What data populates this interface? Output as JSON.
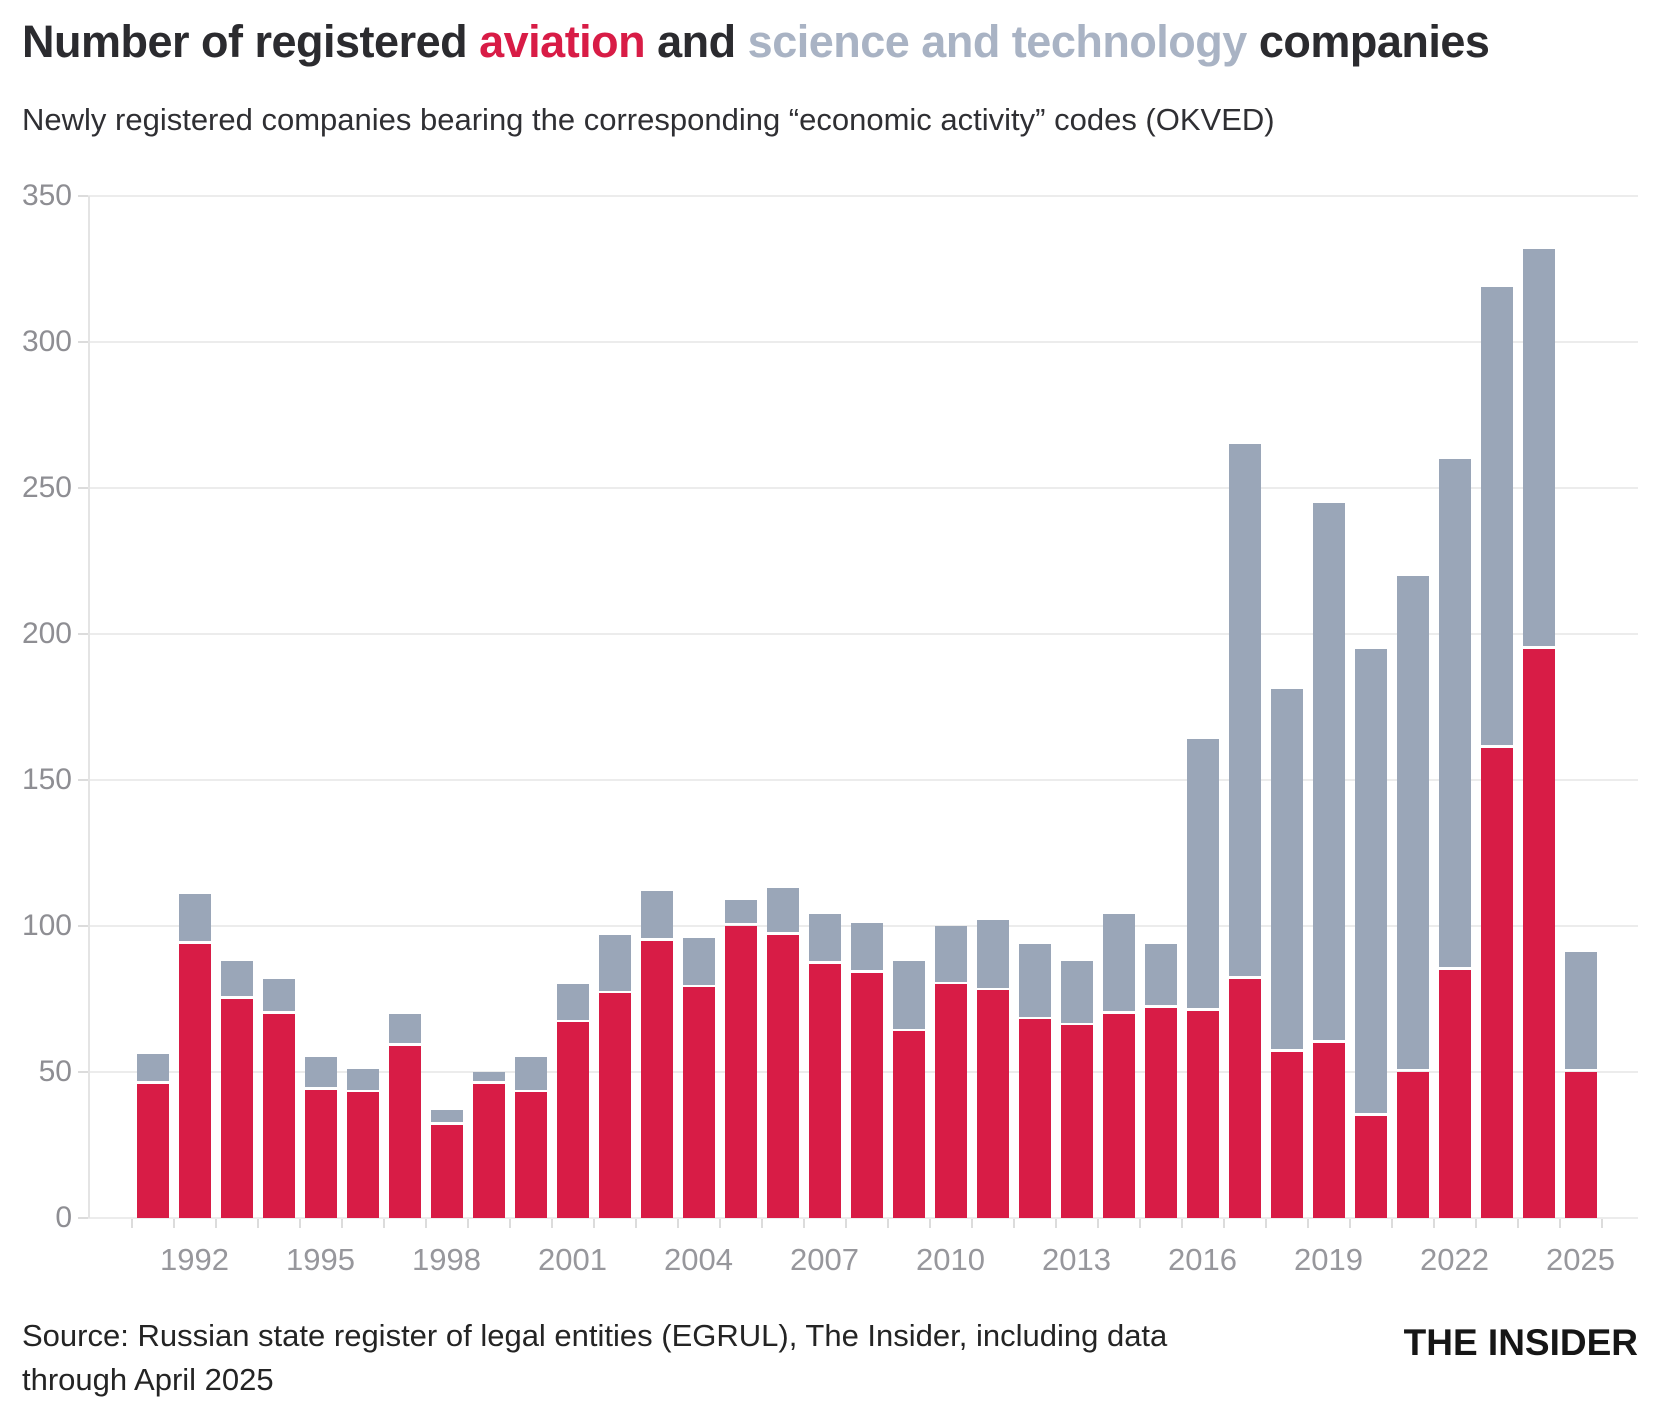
{
  "title": {
    "part1": "Number of registered ",
    "part2": "aviation",
    "part3": " and ",
    "part4": "science and technology",
    "part5": " companies"
  },
  "subtitle": "Newly registered companies bearing the corresponding “economic activity” codes (OKVED)",
  "source": {
    "line1": "Source: Russian state register of legal entities (EGRUL), The Insider, including data",
    "line2": "through April 2025"
  },
  "logo": "THE INSIDER",
  "colors": {
    "aviation": "#d81c46",
    "scitech": "#9aa6b8",
    "title_scitech": "#a9b3c4",
    "grid": "#ececec",
    "axis_text": "#8e8e93"
  },
  "chart_data": {
    "type": "bar",
    "stacked": true,
    "title": "Number of registered aviation and science and technology companies",
    "xlabel": "",
    "ylabel": "",
    "ylim": [
      0,
      350
    ],
    "grid": true,
    "legend_position": "in-title",
    "categories": [
      1991,
      1992,
      1993,
      1994,
      1995,
      1996,
      1997,
      1998,
      1999,
      2000,
      2001,
      2002,
      2003,
      2004,
      2005,
      2006,
      2007,
      2008,
      2009,
      2010,
      2011,
      2012,
      2013,
      2014,
      2015,
      2016,
      2017,
      2018,
      2019,
      2020,
      2021,
      2022,
      2023,
      2024,
      2025
    ],
    "series": [
      {
        "name": "aviation",
        "color": "#d81c46",
        "values": [
          46,
          94,
          75,
          70,
          44,
          43,
          59,
          32,
          46,
          43,
          67,
          77,
          95,
          79,
          100,
          97,
          87,
          84,
          64,
          80,
          78,
          68,
          66,
          70,
          72,
          71,
          82,
          57,
          60,
          35,
          50,
          85,
          161,
          195,
          50
        ]
      },
      {
        "name": "science and technology",
        "color": "#9aa6b8",
        "values": [
          10,
          17,
          13,
          12,
          11,
          8,
          11,
          5,
          4,
          12,
          13,
          20,
          17,
          17,
          9,
          16,
          17,
          17,
          24,
          20,
          24,
          26,
          22,
          34,
          22,
          93,
          183,
          124,
          185,
          160,
          170,
          175,
          158,
          137,
          41
        ]
      }
    ],
    "totals": [
      56,
      111,
      88,
      82,
      55,
      51,
      70,
      37,
      50,
      55,
      80,
      97,
      112,
      96,
      109,
      113,
      104,
      101,
      88,
      100,
      102,
      94,
      88,
      104,
      94,
      164,
      265,
      181,
      245,
      195,
      220,
      260,
      319,
      332,
      91
    ],
    "yticks": [
      0,
      50,
      100,
      150,
      200,
      250,
      300,
      350
    ],
    "xtick_labels": [
      "1992",
      "1995",
      "1998",
      "2001",
      "2004",
      "2007",
      "2010",
      "2013",
      "2016",
      "2019",
      "2022",
      "2025"
    ]
  }
}
